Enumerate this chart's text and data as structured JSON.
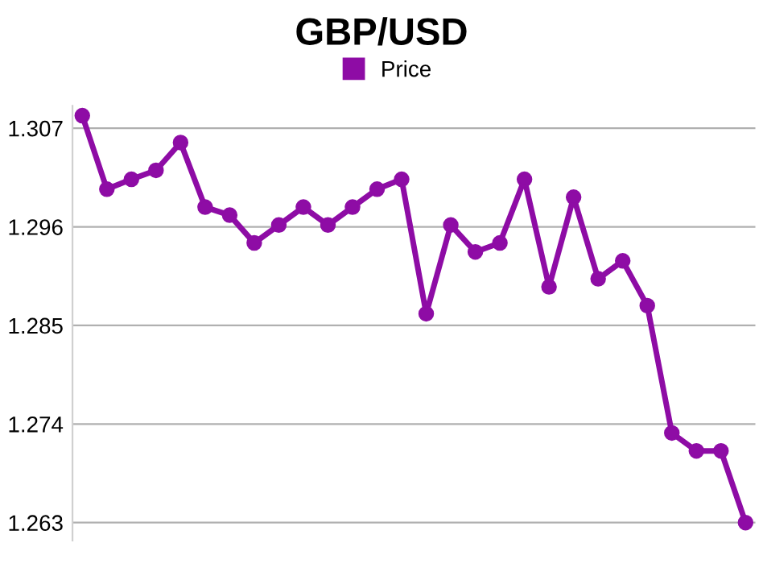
{
  "chart_data": {
    "type": "line",
    "title": "GBP/USD",
    "categories": [
      null,
      null,
      null,
      null,
      null,
      null,
      null,
      null,
      null,
      null,
      null,
      null,
      null,
      null,
      null,
      null,
      null,
      null,
      null,
      null,
      null,
      null,
      null,
      null,
      null,
      null,
      null,
      null
    ],
    "series": [
      {
        "name": "Price",
        "color": "#8e0ca5",
        "values": [
          1.3084,
          1.3002,
          1.3013,
          1.3023,
          1.3054,
          1.2982,
          1.2973,
          1.2942,
          1.2962,
          1.2982,
          1.2962,
          1.2982,
          1.3002,
          1.3013,
          1.2863,
          1.2962,
          1.2932,
          1.2942,
          1.3013,
          1.2893,
          1.2993,
          1.2902,
          1.2922,
          1.2872,
          1.273,
          1.271,
          1.271,
          1.263
        ]
      }
    ],
    "ylim": [
      1.261,
      1.3095
    ],
    "yticks": [
      1.263,
      1.274,
      1.285,
      1.296,
      1.307
    ],
    "grid": "y",
    "legend": "top",
    "marker": "circle",
    "line_style": "solid",
    "tick_labels": "y"
  }
}
